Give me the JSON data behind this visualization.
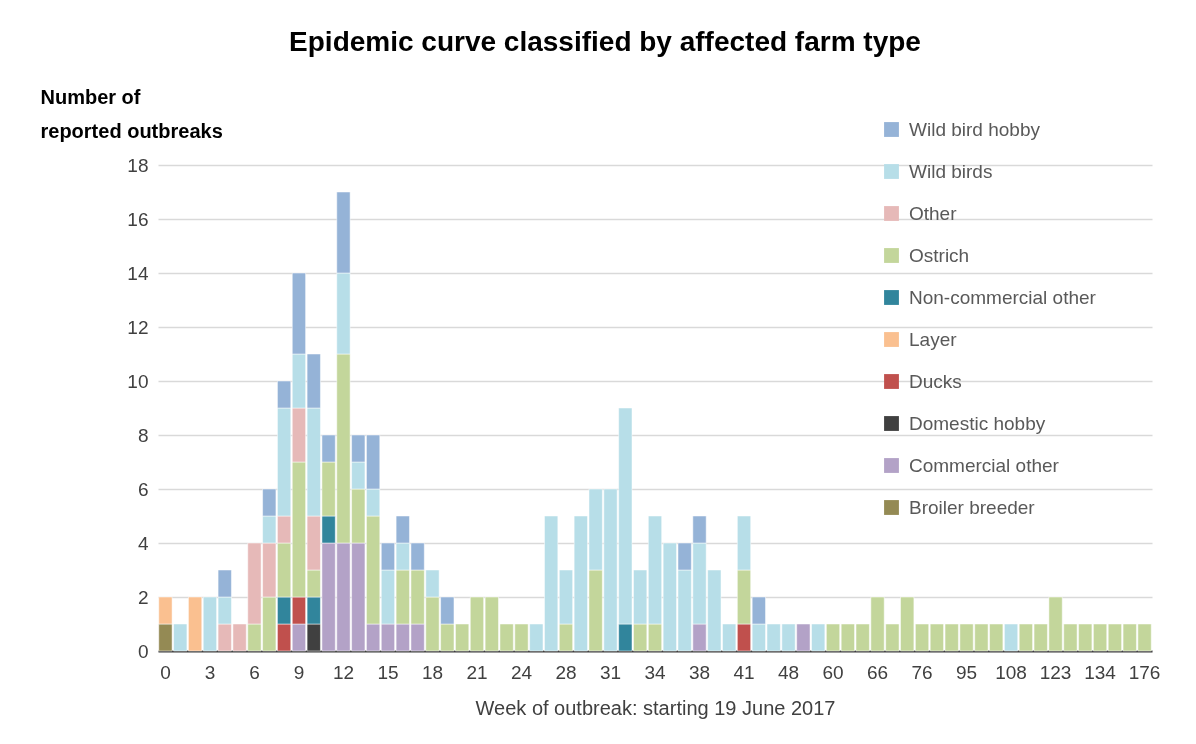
{
  "chart_data": {
    "type": "bar",
    "title": "Epidemic curve classified by affected farm type",
    "xlabel": "Week of outbreak: starting 19 June 2017",
    "ylabel": "Number of reported outbreaks",
    "categories": [
      "0",
      null,
      null,
      "3",
      null,
      null,
      "6",
      null,
      null,
      "9",
      null,
      null,
      "12",
      null,
      null,
      "15",
      null,
      null,
      "18",
      null,
      null,
      "21",
      null,
      null,
      "24",
      null,
      null,
      "28",
      null,
      null,
      "31",
      null,
      null,
      "34",
      null,
      null,
      "38",
      null,
      null,
      "41",
      null,
      null,
      "48",
      null,
      null,
      "60",
      null,
      null,
      "66",
      null,
      null,
      "76",
      null,
      null,
      "95",
      null,
      null,
      "108",
      null,
      null,
      "123",
      null,
      null,
      "134",
      null,
      null,
      "176"
    ],
    "stacked": true,
    "ylim": [
      0,
      18
    ],
    "yticks": [
      0,
      2,
      4,
      6,
      8,
      10,
      12,
      14,
      16,
      18
    ],
    "grid": "y",
    "legend": "top right",
    "series": [
      {
        "name": "Broiler breeder",
        "color": "#948a54",
        "values": [
          1,
          null,
          null,
          null,
          null,
          null,
          null,
          null,
          null,
          null,
          null,
          null,
          null,
          null,
          null,
          null,
          null,
          null,
          null,
          null,
          null,
          null,
          null,
          null,
          null,
          null,
          null,
          null,
          null,
          null,
          null,
          null,
          null,
          null,
          null,
          null,
          null,
          null,
          null,
          null,
          null,
          null,
          null,
          null,
          null,
          null,
          null,
          null,
          null,
          null,
          null,
          null,
          null,
          null,
          null,
          null,
          null,
          null,
          null,
          null,
          null,
          null,
          null,
          null,
          null,
          null,
          null
        ]
      },
      {
        "name": "Commercial other",
        "color": "#b3a2c7",
        "values": [
          null,
          null,
          null,
          null,
          null,
          null,
          null,
          null,
          null,
          1,
          null,
          4,
          4,
          4,
          1,
          1,
          1,
          1,
          null,
          null,
          null,
          null,
          null,
          null,
          null,
          null,
          null,
          null,
          null,
          null,
          null,
          null,
          null,
          null,
          null,
          null,
          1,
          null,
          null,
          null,
          null,
          null,
          null,
          1,
          null,
          null,
          null,
          null,
          null,
          null,
          null,
          null,
          null,
          null,
          null,
          null,
          null,
          null,
          null,
          null,
          null,
          null,
          null,
          null,
          null,
          null,
          null
        ]
      },
      {
        "name": "Domestic hobby",
        "color": "#404040",
        "values": [
          null,
          null,
          null,
          null,
          null,
          null,
          null,
          null,
          null,
          null,
          1,
          null,
          null,
          null,
          null,
          null,
          null,
          null,
          null,
          null,
          null,
          null,
          null,
          null,
          null,
          null,
          null,
          null,
          null,
          null,
          null,
          null,
          null,
          null,
          null,
          null,
          null,
          null,
          null,
          null,
          null,
          null,
          null,
          null,
          null,
          null,
          null,
          null,
          null,
          null,
          null,
          null,
          null,
          null,
          null,
          null,
          null,
          null,
          null,
          null,
          null,
          null,
          null,
          null,
          null,
          null,
          null
        ]
      },
      {
        "name": "Ducks",
        "color": "#c0504d",
        "values": [
          null,
          null,
          null,
          null,
          null,
          null,
          null,
          null,
          1,
          1,
          null,
          null,
          null,
          null,
          null,
          null,
          null,
          null,
          null,
          null,
          null,
          null,
          null,
          null,
          null,
          null,
          null,
          null,
          null,
          null,
          null,
          null,
          null,
          null,
          null,
          null,
          null,
          null,
          null,
          1,
          null,
          null,
          null,
          null,
          null,
          null,
          null,
          null,
          null,
          null,
          null,
          null,
          null,
          null,
          null,
          null,
          null,
          null,
          null,
          null,
          null,
          null,
          null,
          null,
          null,
          null,
          null
        ]
      },
      {
        "name": "Layer",
        "color": "#fac090",
        "values": [
          1,
          null,
          2,
          null,
          null,
          null,
          null,
          null,
          null,
          null,
          null,
          null,
          null,
          null,
          null,
          null,
          null,
          null,
          null,
          null,
          null,
          null,
          null,
          null,
          null,
          null,
          null,
          null,
          null,
          null,
          null,
          null,
          null,
          null,
          null,
          null,
          null,
          null,
          null,
          null,
          null,
          null,
          null,
          null,
          null,
          null,
          null,
          null,
          null,
          null,
          null,
          null,
          null,
          null,
          null,
          null,
          null,
          null,
          null,
          null,
          null,
          null,
          null,
          null,
          null,
          null,
          null
        ]
      },
      {
        "name": "Non-commercial other",
        "color": "#31859c",
        "values": [
          null,
          null,
          null,
          null,
          null,
          null,
          null,
          null,
          1,
          null,
          1,
          1,
          null,
          null,
          null,
          null,
          null,
          null,
          null,
          null,
          null,
          null,
          null,
          null,
          null,
          null,
          null,
          null,
          null,
          null,
          null,
          1,
          null,
          null,
          null,
          null,
          null,
          null,
          null,
          null,
          null,
          null,
          null,
          null,
          null,
          null,
          null,
          null,
          null,
          null,
          null,
          null,
          null,
          null,
          null,
          null,
          null,
          null,
          null,
          null,
          null,
          null,
          null,
          null,
          null,
          null,
          null
        ]
      },
      {
        "name": "Ostrich",
        "color": "#c3d69b",
        "values": [
          null,
          null,
          null,
          null,
          null,
          null,
          1,
          2,
          2,
          5,
          1,
          2,
          7,
          2,
          4,
          null,
          2,
          2,
          2,
          1,
          1,
          2,
          2,
          1,
          1,
          null,
          null,
          1,
          null,
          3,
          null,
          null,
          1,
          1,
          null,
          null,
          null,
          null,
          null,
          2,
          null,
          null,
          null,
          null,
          null,
          1,
          1,
          1,
          2,
          1,
          2,
          1,
          1,
          1,
          1,
          1,
          1,
          null,
          1,
          1,
          2,
          1,
          1,
          1,
          1,
          1,
          1
        ]
      },
      {
        "name": "Other",
        "color": "#e6b9b8",
        "values": [
          null,
          null,
          null,
          null,
          1,
          1,
          3,
          2,
          1,
          2,
          2,
          null,
          null,
          null,
          null,
          null,
          null,
          null,
          null,
          null,
          null,
          null,
          null,
          null,
          null,
          null,
          null,
          null,
          null,
          null,
          null,
          null,
          null,
          null,
          null,
          null,
          null,
          null,
          null,
          null,
          null,
          null,
          null,
          null,
          null,
          null,
          null,
          null,
          null,
          null,
          null,
          null,
          null,
          null,
          null,
          null,
          null,
          null,
          null,
          null,
          null,
          null,
          null,
          null,
          null,
          null,
          null
        ]
      },
      {
        "name": "Wild birds",
        "color": "#b7dee8",
        "values": [
          null,
          1,
          null,
          2,
          1,
          null,
          null,
          1,
          4,
          2,
          4,
          null,
          3,
          1,
          1,
          2,
          1,
          null,
          1,
          null,
          null,
          null,
          null,
          null,
          null,
          1,
          5,
          2,
          5,
          3,
          6,
          8,
          2,
          4,
          4,
          3,
          3,
          3,
          1,
          2,
          1,
          1,
          1,
          null,
          1,
          null,
          null,
          null,
          null,
          null,
          null,
          null,
          null,
          null,
          null,
          null,
          null,
          1,
          null,
          null,
          null,
          null,
          null,
          null,
          null,
          null,
          null
        ]
      },
      {
        "name": "Wild bird hobby",
        "color": "#95b3d7",
        "values": [
          null,
          null,
          null,
          null,
          1,
          null,
          null,
          1,
          1,
          3,
          2,
          1,
          3,
          1,
          2,
          1,
          1,
          1,
          null,
          1,
          null,
          null,
          null,
          null,
          null,
          null,
          null,
          null,
          null,
          null,
          null,
          null,
          null,
          null,
          null,
          1,
          1,
          null,
          null,
          null,
          1,
          null,
          null,
          null,
          null,
          null,
          null,
          null,
          null,
          null,
          null,
          null,
          null,
          null,
          null,
          null,
          null,
          null,
          null,
          null,
          null,
          null,
          null,
          null,
          null,
          null,
          null
        ]
      }
    ]
  }
}
